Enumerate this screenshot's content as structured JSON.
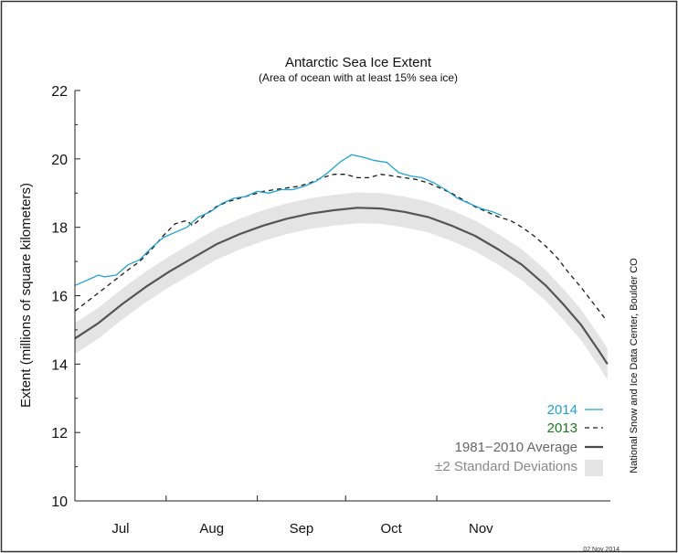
{
  "chart_data": {
    "type": "line",
    "title": "Antarctic Sea Ice Extent",
    "subtitle": "(Area of ocean with at least 15% sea ice)",
    "ylabel": "Extent (millions of square kilometers)",
    "xlabel": "",
    "ylim": [
      10,
      22
    ],
    "yticks": [
      "10",
      "12",
      "14",
      "16",
      "18",
      "20",
      "22"
    ],
    "months": [
      "Jul",
      "Aug",
      "Sep",
      "Oct",
      "Nov"
    ],
    "credit": "National Snow and Ice Data Center, Boulder CO",
    "date_stamp": "02 Nov 2014",
    "grid": false,
    "legend_position": "bottom-right",
    "series": [
      {
        "name": "2014",
        "style": "solid",
        "color": "#1fa3d4",
        "points": [
          [
            0,
            16.3
          ],
          [
            4,
            16.45
          ],
          [
            8,
            16.6
          ],
          [
            10,
            16.55
          ],
          [
            14,
            16.6
          ],
          [
            18,
            16.9
          ],
          [
            22,
            17.05
          ],
          [
            26,
            17.4
          ],
          [
            30,
            17.7
          ],
          [
            34,
            17.85
          ],
          [
            38,
            18.0
          ],
          [
            42,
            18.3
          ],
          [
            46,
            18.45
          ],
          [
            50,
            18.7
          ],
          [
            54,
            18.85
          ],
          [
            58,
            18.9
          ],
          [
            62,
            19.05
          ],
          [
            66,
            19.0
          ],
          [
            70,
            19.1
          ],
          [
            74,
            19.1
          ],
          [
            78,
            19.2
          ],
          [
            82,
            19.35
          ],
          [
            86,
            19.6
          ],
          [
            90,
            19.9
          ],
          [
            94,
            20.12
          ],
          [
            98,
            20.05
          ],
          [
            102,
            19.95
          ],
          [
            106,
            19.9
          ],
          [
            110,
            19.6
          ],
          [
            114,
            19.5
          ],
          [
            118,
            19.45
          ],
          [
            122,
            19.3
          ],
          [
            126,
            19.1
          ],
          [
            130,
            18.85
          ],
          [
            134,
            18.7
          ],
          [
            138,
            18.55
          ],
          [
            142,
            18.45
          ],
          [
            145,
            18.35
          ]
        ]
      },
      {
        "name": "2013",
        "style": "dashed",
        "color": "#1a1a1a",
        "points": [
          [
            0,
            15.55
          ],
          [
            6,
            15.95
          ],
          [
            12,
            16.35
          ],
          [
            18,
            16.75
          ],
          [
            22,
            17.0
          ],
          [
            26,
            17.35
          ],
          [
            30,
            17.75
          ],
          [
            34,
            18.1
          ],
          [
            38,
            18.2
          ],
          [
            40,
            18.05
          ],
          [
            44,
            18.35
          ],
          [
            48,
            18.6
          ],
          [
            52,
            18.75
          ],
          [
            56,
            18.85
          ],
          [
            60,
            18.95
          ],
          [
            64,
            19.05
          ],
          [
            68,
            19.1
          ],
          [
            72,
            19.15
          ],
          [
            76,
            19.2
          ],
          [
            80,
            19.3
          ],
          [
            84,
            19.45
          ],
          [
            88,
            19.55
          ],
          [
            92,
            19.55
          ],
          [
            96,
            19.45
          ],
          [
            100,
            19.45
          ],
          [
            104,
            19.55
          ],
          [
            108,
            19.5
          ],
          [
            112,
            19.45
          ],
          [
            116,
            19.4
          ],
          [
            120,
            19.3
          ],
          [
            124,
            19.15
          ],
          [
            128,
            19.0
          ],
          [
            132,
            18.8
          ],
          [
            136,
            18.6
          ],
          [
            140,
            18.45
          ],
          [
            144,
            18.3
          ],
          [
            148,
            18.2
          ],
          [
            152,
            18.0
          ],
          [
            156,
            17.75
          ],
          [
            160,
            17.45
          ],
          [
            164,
            17.1
          ],
          [
            168,
            16.65
          ],
          [
            172,
            16.25
          ],
          [
            176,
            15.8
          ],
          [
            180,
            15.35
          ]
        ]
      },
      {
        "name": "1981−2010 Average",
        "style": "solid",
        "color": "#555555",
        "points": [
          [
            0,
            14.75
          ],
          [
            8,
            15.2
          ],
          [
            16,
            15.75
          ],
          [
            24,
            16.25
          ],
          [
            32,
            16.7
          ],
          [
            40,
            17.1
          ],
          [
            48,
            17.5
          ],
          [
            56,
            17.8
          ],
          [
            64,
            18.05
          ],
          [
            72,
            18.25
          ],
          [
            80,
            18.4
          ],
          [
            88,
            18.5
          ],
          [
            96,
            18.57
          ],
          [
            104,
            18.55
          ],
          [
            112,
            18.45
          ],
          [
            120,
            18.3
          ],
          [
            128,
            18.05
          ],
          [
            136,
            17.75
          ],
          [
            144,
            17.35
          ],
          [
            152,
            16.9
          ],
          [
            160,
            16.3
          ],
          [
            166,
            15.75
          ],
          [
            172,
            15.15
          ],
          [
            178,
            14.4
          ],
          [
            181,
            14.0
          ]
        ]
      }
    ],
    "band": {
      "name": "±2 Standard Deviations",
      "color": "#e4e4e4",
      "half_width_millions_km2": 0.45
    }
  }
}
